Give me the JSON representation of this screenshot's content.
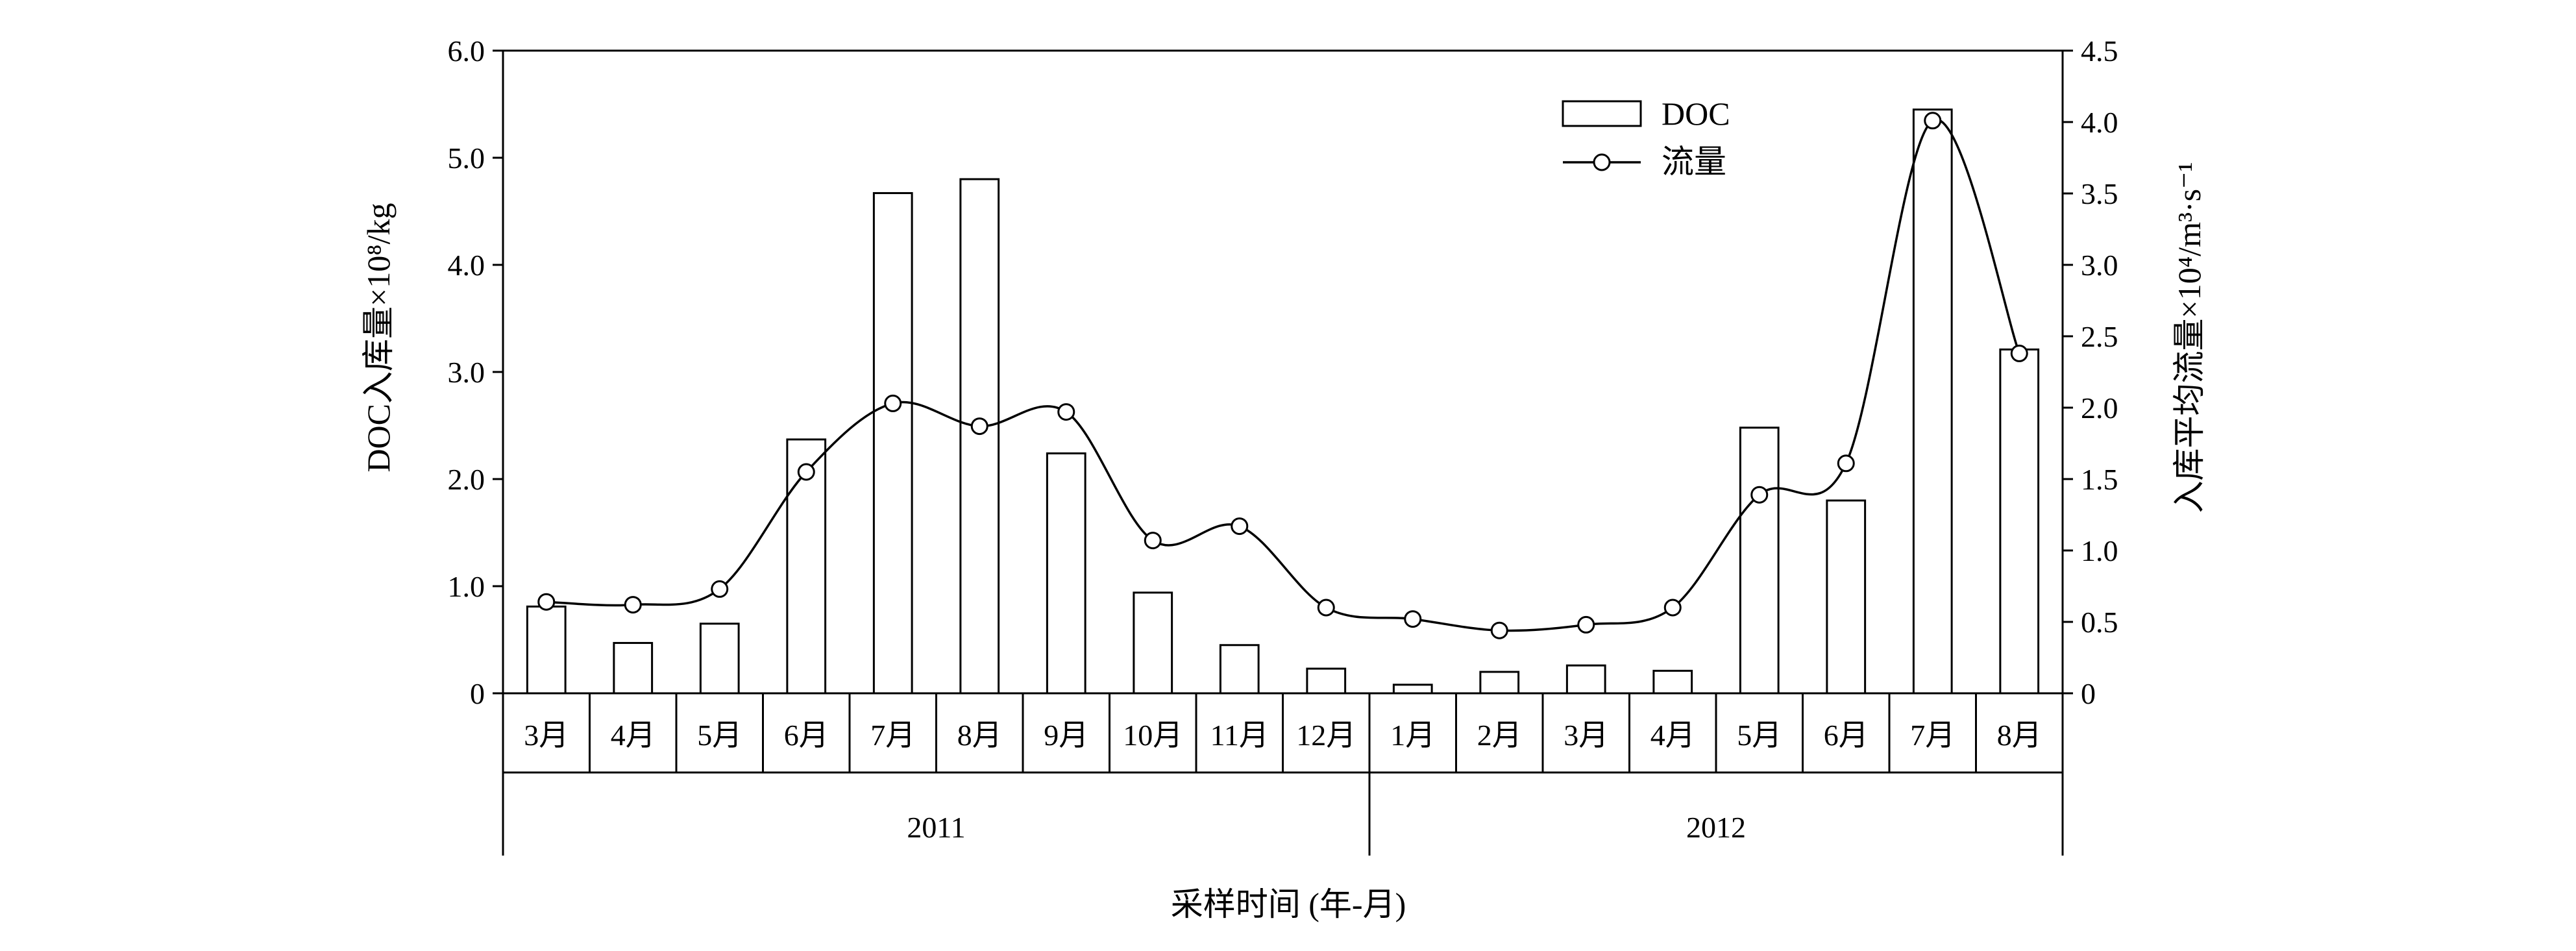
{
  "chart_data": {
    "type": "bar",
    "categories": [
      "3月",
      "4月",
      "5月",
      "6月",
      "7月",
      "8月",
      "9月",
      "10月",
      "11月",
      "12月",
      "1月",
      "2月",
      "3月",
      "4月",
      "5月",
      "6月",
      "7月",
      "8月"
    ],
    "year_groups": [
      {
        "label": "2011",
        "count": 10
      },
      {
        "label": "2012",
        "count": 8
      }
    ],
    "series": [
      {
        "name": "DOC",
        "type": "bar",
        "axis": "left",
        "values": [
          0.81,
          0.47,
          0.65,
          2.37,
          4.67,
          4.8,
          2.24,
          0.94,
          0.45,
          0.23,
          0.08,
          0.2,
          0.26,
          0.21,
          2.48,
          1.8,
          5.45,
          3.21
        ]
      },
      {
        "name": "流量",
        "type": "line",
        "axis": "right",
        "values": [
          0.64,
          0.62,
          0.73,
          1.55,
          2.03,
          1.87,
          1.97,
          1.07,
          1.17,
          0.6,
          0.52,
          0.44,
          0.48,
          0.6,
          1.39,
          1.61,
          4.01,
          2.38
        ]
      }
    ],
    "ylabel": "DOC入库量×10⁸/kg",
    "y2label": "入库平均流量×10⁴/m³·s⁻¹",
    "xlabel": "采样时间 (年-月)",
    "ylim": [
      0,
      6
    ],
    "y2lim": [
      0,
      4.5
    ],
    "yticks": [
      "0",
      "1.0",
      "2.0",
      "3.0",
      "4.0",
      "5.0",
      "6.0"
    ],
    "y2ticks": [
      "0",
      "0.5",
      "1.0",
      "1.5",
      "2.0",
      "2.5",
      "3.0",
      "3.5",
      "4.0",
      "4.5"
    ],
    "legend_position": "top-right",
    "grid": false
  }
}
